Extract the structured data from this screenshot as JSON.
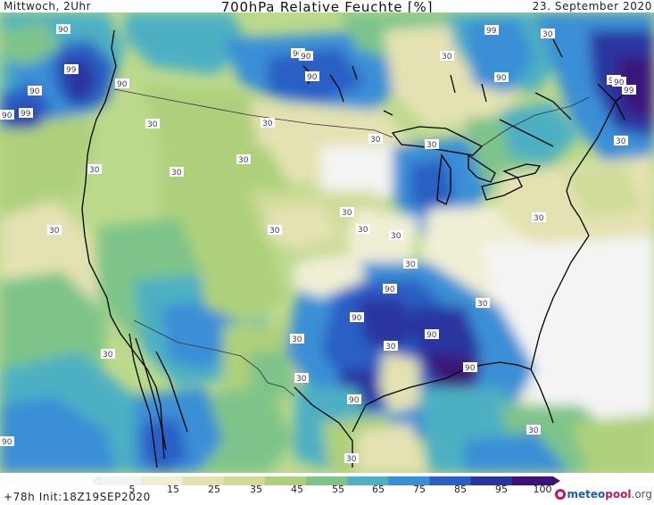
{
  "header": {
    "left": "Mittwoch, 2Uhr",
    "title": "700hPa Relative Feuchte [%]",
    "right": "23. September 2020"
  },
  "footer": {
    "init": "+78h Init:18Z19SEP2020",
    "logo_part1": "meteo",
    "logo_part2": "pool",
    "logo_part3": ".org"
  },
  "legend": {
    "ticks": [
      "5",
      "15",
      "25",
      "35",
      "45",
      "55",
      "65",
      "75",
      "85",
      "95",
      "100"
    ],
    "colors": [
      "#f4f4f4",
      "#f0efd6",
      "#e4e2b2",
      "#cfdc98",
      "#aed07c",
      "#7ec48a",
      "#4eb0c2",
      "#3a8fd6",
      "#2a5fc4",
      "#2a34a0",
      "#3a137a"
    ]
  },
  "labels": {
    "l01": "90",
    "l02": "99",
    "l03": "90",
    "l04": "90",
    "l05": "99",
    "l06": "90",
    "l07": "30",
    "l08": "90",
    "l09": "90",
    "l10": "90",
    "l11": "30",
    "l12": "99",
    "l13": "90",
    "l14": "30",
    "l15": "90",
    "l16": "90",
    "l17": "99",
    "l18": "30",
    "l19": "30",
    "l20": "30",
    "l21": "30",
    "l22": "30",
    "l23": "30",
    "l24": "30",
    "l25": "30",
    "l26": "30",
    "l27": "30",
    "l28": "30",
    "l29": "30",
    "l30": "30",
    "l31": "30",
    "l32": "90",
    "l33": "30",
    "l34": "90",
    "l35": "30",
    "l36": "90",
    "l37": "30",
    "l38": "30",
    "l39": "30",
    "l40": "90",
    "l41": "90",
    "l42": "30",
    "l43": "30",
    "l44": "90",
    "l45": "30"
  }
}
